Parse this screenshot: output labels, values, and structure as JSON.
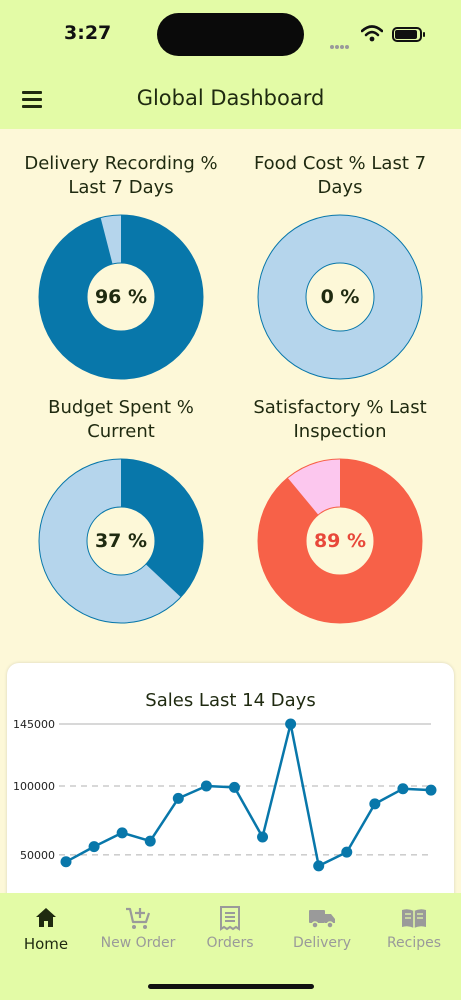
{
  "status_bar": {
    "time": "3:27"
  },
  "header": {
    "title": "Global Dashboard",
    "menu_icon": "hamburger-menu-icon"
  },
  "gauges": [
    {
      "title": "Delivery Recording % Last 7 Days",
      "value_label": "96 %",
      "fraction": 0.96,
      "fill_color": "#0877aa",
      "track_color": "#b5d5ec",
      "text_color": "#1f2a10",
      "type": "donut"
    },
    {
      "title": "Food Cost % Last 7 Days",
      "value_label": "0 %",
      "fraction": 0.0,
      "fill_color": "#0877aa",
      "track_color": "#b5d5ec",
      "text_color": "#1f2a10",
      "type": "donut"
    },
    {
      "title": "Budget Spent % Current",
      "value_label": "37 %",
      "fraction": 0.37,
      "fill_color": "#0877aa",
      "track_color": "#b5d5ec",
      "text_color": "#1f2a10",
      "type": "donut"
    },
    {
      "title": "Satisfactory % Last Inspection",
      "value_label": "89 %",
      "fraction": 0.89,
      "fill_color": "#f76148",
      "track_color": "#fcc7ee",
      "text_color": "#e8483a",
      "type": "donut"
    }
  ],
  "chart_data": {
    "type": "line",
    "title": "Sales Last 14 Days",
    "xlabel": "",
    "ylabel": "",
    "y_ticks": [
      50000,
      100000,
      145000
    ],
    "ylim": [
      0,
      145000
    ],
    "grid": true,
    "values": [
      45000,
      56000,
      66000,
      60000,
      91000,
      100000,
      99000,
      63000,
      145000,
      42000,
      52000,
      87000,
      98000,
      97000
    ],
    "line_color": "#0877aa"
  },
  "tabs": [
    {
      "label": "Home",
      "icon": "home-icon",
      "active": true
    },
    {
      "label": "New Order",
      "icon": "cart-plus-icon",
      "active": false
    },
    {
      "label": "Orders",
      "icon": "receipt-icon",
      "active": false
    },
    {
      "label": "Delivery",
      "icon": "truck-icon",
      "active": false
    },
    {
      "label": "Recipes",
      "icon": "book-icon",
      "active": false
    }
  ]
}
